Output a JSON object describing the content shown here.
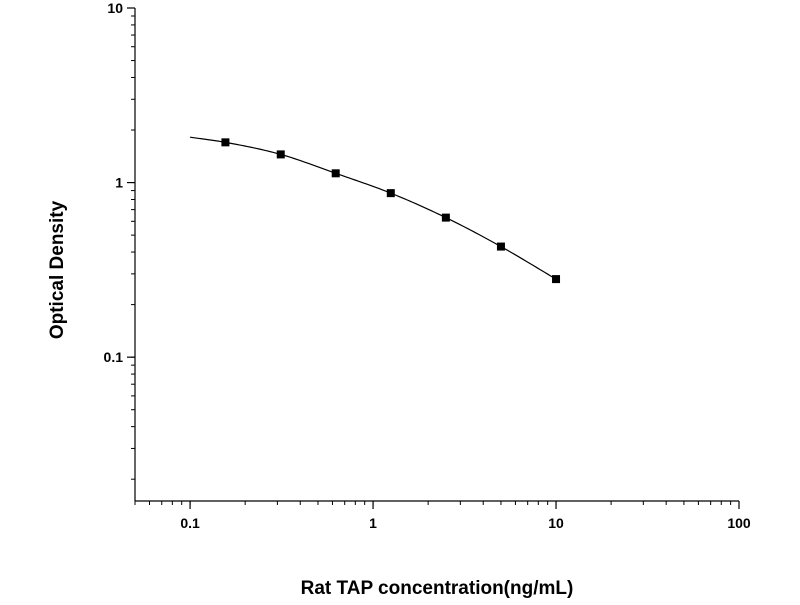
{
  "chart_data": {
    "type": "scatter",
    "title": "",
    "xlabel": "Rat TAP concentration(ng/mL)",
    "ylabel": "Optical Density",
    "x_scale": "log",
    "y_scale": "log",
    "xlim": [
      0.05,
      100
    ],
    "ylim": [
      0.015,
      10
    ],
    "x_ticks": [
      0.1,
      1,
      10,
      100
    ],
    "x_tick_labels": [
      "0.1",
      "1",
      "10",
      "100"
    ],
    "y_ticks": [
      0.1,
      1,
      10
    ],
    "y_tick_labels": [
      "0.1",
      "1",
      "10"
    ],
    "grid": false,
    "legend": "none",
    "series": [
      {
        "x": [
          0.156,
          0.313,
          0.625,
          1.25,
          2.5,
          5,
          10
        ],
        "y": [
          1.7,
          1.45,
          1.13,
          0.87,
          0.63,
          0.43,
          0.28
        ],
        "marker": "square",
        "color": "#000000"
      }
    ],
    "fit_curve": {
      "x": [
        0.1,
        0.156,
        0.313,
        0.625,
        1.25,
        2.5,
        5,
        10
      ],
      "y": [
        1.82,
        1.7,
        1.45,
        1.13,
        0.87,
        0.63,
        0.43,
        0.28
      ],
      "color": "#000000"
    }
  }
}
